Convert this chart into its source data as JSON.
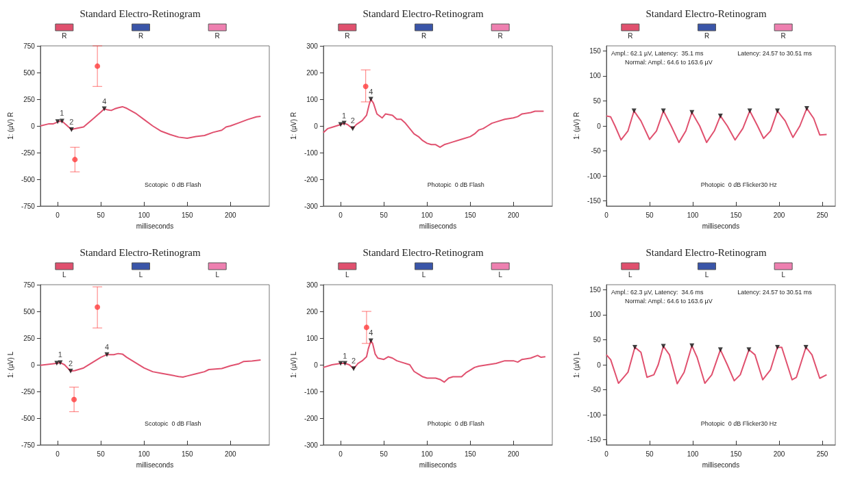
{
  "chart_data": [
    {
      "type": "line",
      "title": "Standard Electro-Retinogram",
      "xlabel": "milliseconds",
      "ylabel": "1: (µV) R",
      "xlim": [
        -20,
        245
      ],
      "xticks": [
        0,
        50,
        100,
        150,
        200
      ],
      "ylim": [
        -750,
        750
      ],
      "yticks": [
        -750,
        -500,
        -250,
        0,
        250,
        500,
        750
      ],
      "legend": "top",
      "series": [
        {
          "name": "R",
          "color": "#e0506e",
          "x": [
            -20,
            -10,
            -5,
            -2,
            0,
            5,
            10,
            16,
            20,
            30,
            40,
            50,
            54,
            58,
            62,
            66,
            70,
            75,
            80,
            90,
            100,
            110,
            120,
            130,
            140,
            150,
            160,
            170,
            180,
            190,
            195,
            200,
            210,
            220,
            230,
            235
          ],
          "values": [
            0,
            20,
            20,
            30,
            40,
            45,
            10,
            -35,
            -25,
            -10,
            60,
            130,
            160,
            150,
            145,
            160,
            170,
            180,
            165,
            120,
            60,
            0,
            -50,
            -80,
            -105,
            -115,
            -100,
            -90,
            -60,
            -40,
            -10,
            0,
            30,
            60,
            85,
            90
          ]
        },
        {
          "name": "R",
          "color": "#3a55a8"
        },
        {
          "name": "R",
          "color": "#ee80b0"
        },
        {
          "type": "scatter",
          "color": "#ff3b3b",
          "marker": "circle",
          "x": [
            46,
            20
          ],
          "values": [
            560,
            -315
          ],
          "errors": [
            [
              370,
              750
            ],
            [
              -430,
              -200
            ]
          ]
        },
        {
          "type": "scatter",
          "color": "#111111",
          "marker": "triangle",
          "x": [
            0,
            5,
            16,
            54
          ],
          "values": [
            40,
            45,
            -35,
            160
          ]
        }
      ],
      "annotations": [
        {
          "text": "1",
          "x": 5,
          "y": 45
        },
        {
          "text": "2",
          "x": 16,
          "y": -35
        },
        {
          "text": "4",
          "x": 54,
          "y": 160
        },
        "Scotopic  0 dB Flash"
      ]
    },
    {
      "type": "line",
      "title": "Standard Electro-Retinogram",
      "xlabel": "milliseconds",
      "ylabel": "1: (µV) R",
      "xlim": [
        -20,
        245
      ],
      "xticks": [
        0,
        50,
        100,
        150,
        200
      ],
      "ylim": [
        -300,
        300
      ],
      "yticks": [
        -300,
        -200,
        -100,
        0,
        100,
        200,
        300
      ],
      "legend": "top",
      "series": [
        {
          "name": "R",
          "color": "#e0506e",
          "x": [
            -20,
            -15,
            -10,
            -5,
            0,
            4,
            8,
            14,
            18,
            25,
            30,
            33,
            35,
            38,
            42,
            48,
            52,
            60,
            65,
            70,
            75,
            80,
            85,
            90,
            95,
            100,
            105,
            110,
            115,
            120,
            125,
            130,
            140,
            150,
            155,
            160,
            165,
            170,
            175,
            180,
            190,
            200,
            205,
            210,
            220,
            225,
            235
          ],
          "values": [
            -25,
            -10,
            -5,
            0,
            5,
            10,
            5,
            -10,
            5,
            20,
            40,
            80,
            100,
            85,
            45,
            30,
            45,
            40,
            25,
            25,
            10,
            -10,
            -30,
            -40,
            -55,
            -65,
            -70,
            -70,
            -80,
            -70,
            -65,
            -60,
            -50,
            -40,
            -30,
            -15,
            -10,
            0,
            10,
            15,
            25,
            30,
            35,
            45,
            50,
            55,
            55
          ]
        },
        {
          "name": "R",
          "color": "#3a55a8"
        },
        {
          "name": "R",
          "color": "#ee80b0"
        },
        {
          "type": "scatter",
          "color": "#ff3b3b",
          "marker": "circle",
          "x": [
            29
          ],
          "values": [
            148
          ],
          "errors": [
            [
              90,
              210
            ]
          ]
        },
        {
          "type": "scatter",
          "color": "#111111",
          "marker": "triangle",
          "x": [
            0,
            4,
            14,
            35
          ],
          "values": [
            5,
            10,
            -10,
            100
          ]
        }
      ],
      "annotations": [
        {
          "text": "1",
          "x": 4,
          "y": 10
        },
        {
          "text": "2",
          "x": 14,
          "y": -10
        },
        {
          "text": "4",
          "x": 35,
          "y": 100
        },
        "Photopic  0 dB Flash"
      ]
    },
    {
      "type": "line",
      "title": "Standard Electro-Retinogram",
      "xlabel": "milliseconds",
      "ylabel": "1: (µV) R",
      "xlim": [
        0,
        265
      ],
      "xticks": [
        0,
        50,
        100,
        150,
        200,
        250
      ],
      "ylim": [
        -160,
        160
      ],
      "yticks": [
        -150,
        -100,
        -50,
        0,
        50,
        100,
        150
      ],
      "legend": "top",
      "series": [
        {
          "name": "R",
          "color": "#e0506e",
          "x": [
            0,
            5,
            10,
            17,
            25,
            32,
            40,
            50,
            58,
            66,
            75,
            84,
            92,
            99,
            108,
            116,
            125,
            132,
            140,
            149,
            158,
            166,
            175,
            182,
            190,
            198,
            207,
            216,
            224,
            232,
            240,
            247,
            255
          ],
          "values": [
            20,
            18,
            0,
            -28,
            -10,
            30,
            10,
            -27,
            -10,
            30,
            0,
            -33,
            -10,
            27,
            0,
            -33,
            -10,
            20,
            0,
            -28,
            -5,
            30,
            0,
            -25,
            -10,
            30,
            10,
            -23,
            0,
            35,
            15,
            -18,
            -17
          ]
        },
        {
          "name": "R",
          "color": "#3a55a8"
        },
        {
          "name": "R",
          "color": "#ee80b0"
        },
        {
          "type": "scatter",
          "color": "#111111",
          "marker": "triangle",
          "x": [
            32,
            66,
            99,
            132,
            166,
            198,
            232
          ],
          "values": [
            30,
            30,
            27,
            20,
            30,
            30,
            35
          ]
        }
      ],
      "annotations": [
        "Ampl.: 62.1 µV, Latency:  35.1 ms",
        "Normal: Ampl.: 64.6 to 163.6 µV",
        "Latency: 24.57 to 30.51 ms",
        "Photopic  0 dB Flicker30 Hz"
      ]
    },
    {
      "type": "line",
      "title": "Standard Electro-Retinogram",
      "xlabel": "milliseconds",
      "ylabel": "1: (µV) L",
      "xlim": [
        -20,
        245
      ],
      "xticks": [
        0,
        50,
        100,
        150,
        200
      ],
      "ylim": [
        -750,
        750
      ],
      "yticks": [
        -750,
        -500,
        -250,
        0,
        250,
        500,
        750
      ],
      "legend": "top",
      "series": [
        {
          "name": "L",
          "color": "#e0506e",
          "x": [
            -20,
            -10,
            0,
            3,
            8,
            15,
            20,
            30,
            40,
            50,
            57,
            65,
            70,
            75,
            80,
            90,
            100,
            110,
            120,
            130,
            140,
            145,
            150,
            160,
            170,
            175,
            190,
            200,
            210,
            215,
            225,
            235
          ],
          "values": [
            -5,
            5,
            15,
            20,
            0,
            -60,
            -55,
            -30,
            20,
            70,
            95,
            95,
            105,
            100,
            70,
            20,
            -30,
            -65,
            -80,
            -95,
            -110,
            -115,
            -105,
            -85,
            -65,
            -45,
            -35,
            -10,
            10,
            30,
            35,
            45
          ]
        },
        {
          "name": "L",
          "color": "#3a55a8"
        },
        {
          "name": "L",
          "color": "#ee80b0"
        },
        {
          "type": "scatter",
          "color": "#ff3b3b",
          "marker": "circle",
          "x": [
            46,
            19
          ],
          "values": [
            540,
            -325
          ],
          "errors": [
            [
              345,
              730
            ],
            [
              -440,
              -210
            ]
          ]
        },
        {
          "type": "scatter",
          "color": "#111111",
          "marker": "triangle",
          "x": [
            -1,
            3,
            15,
            57
          ],
          "values": [
            15,
            20,
            -60,
            95
          ]
        }
      ],
      "annotations": [
        {
          "text": "1",
          "x": 3,
          "y": 20
        },
        {
          "text": "2",
          "x": 15,
          "y": -60
        },
        {
          "text": "4",
          "x": 57,
          "y": 95
        },
        "Scotopic  0 dB Flash"
      ]
    },
    {
      "type": "line",
      "title": "Standard Electro-Retinogram",
      "xlabel": "milliseconds",
      "ylabel": "1: (µV) L",
      "xlim": [
        -20,
        245
      ],
      "xticks": [
        0,
        50,
        100,
        150,
        200
      ],
      "ylim": [
        -300,
        300
      ],
      "yticks": [
        -300,
        -200,
        -100,
        0,
        100,
        200,
        300
      ],
      "legend": "top",
      "series": [
        {
          "name": "L",
          "color": "#e0506e",
          "x": [
            -20,
            -10,
            0,
            5,
            10,
            15,
            20,
            25,
            30,
            32,
            35,
            37,
            40,
            43,
            50,
            55,
            60,
            65,
            70,
            80,
            85,
            90,
            95,
            100,
            110,
            115,
            120,
            125,
            130,
            140,
            145,
            150,
            155,
            160,
            170,
            180,
            190,
            200,
            205,
            210,
            220,
            228,
            232,
            237
          ],
          "values": [
            -10,
            0,
            5,
            5,
            0,
            -15,
            5,
            15,
            30,
            60,
            90,
            80,
            40,
            25,
            20,
            30,
            25,
            15,
            10,
            0,
            -25,
            -35,
            -45,
            -50,
            -50,
            -55,
            -65,
            -50,
            -45,
            -45,
            -30,
            -20,
            -10,
            -5,
            0,
            5,
            15,
            15,
            10,
            20,
            25,
            35,
            28,
            30
          ]
        },
        {
          "name": "L",
          "color": "#3a55a8"
        },
        {
          "name": "L",
          "color": "#ee80b0"
        },
        {
          "type": "scatter",
          "color": "#ff3b3b",
          "marker": "circle",
          "x": [
            30
          ],
          "values": [
            140
          ],
          "errors": [
            [
              80,
              200
            ]
          ]
        },
        {
          "type": "scatter",
          "color": "#111111",
          "marker": "triangle",
          "x": [
            0,
            5,
            15,
            35
          ],
          "values": [
            5,
            5,
            -15,
            90
          ]
        }
      ],
      "annotations": [
        {
          "text": "1",
          "x": 5,
          "y": 5
        },
        {
          "text": "2",
          "x": 15,
          "y": -15
        },
        {
          "text": "4",
          "x": 35,
          "y": 90
        },
        "Photopic  0 dB Flash"
      ]
    },
    {
      "type": "line",
      "title": "Standard Electro-Retinogram",
      "xlabel": "milliseconds",
      "ylabel": "1: (µV) L",
      "xlim": [
        0,
        265
      ],
      "xticks": [
        0,
        50,
        100,
        150,
        200,
        250
      ],
      "ylim": [
        -160,
        160
      ],
      "yticks": [
        -150,
        -100,
        -50,
        0,
        50,
        100,
        150
      ],
      "legend": "top",
      "series": [
        {
          "name": "L",
          "color": "#e0506e",
          "x": [
            0,
            5,
            14,
            20,
            25,
            33,
            40,
            47,
            55,
            60,
            66,
            73,
            82,
            90,
            99,
            105,
            114,
            122,
            132,
            140,
            148,
            155,
            165,
            172,
            181,
            190,
            198,
            203,
            215,
            220,
            231,
            238,
            247,
            255
          ],
          "values": [
            20,
            10,
            -37,
            -25,
            -15,
            35,
            25,
            -25,
            -20,
            0,
            37,
            20,
            -38,
            -15,
            38,
            15,
            -37,
            -20,
            30,
            0,
            -32,
            -20,
            30,
            20,
            -30,
            -10,
            35,
            35,
            -30,
            -25,
            35,
            20,
            -27,
            -20
          ]
        },
        {
          "name": "L",
          "color": "#3a55a8"
        },
        {
          "name": "L",
          "color": "#ee80b0"
        },
        {
          "type": "scatter",
          "color": "#111111",
          "marker": "triangle",
          "x": [
            33,
            66,
            99,
            132,
            165,
            198,
            231
          ],
          "values": [
            35,
            37,
            38,
            30,
            30,
            35,
            35
          ]
        }
      ],
      "annotations": [
        "Ampl.: 62.3 µV, Latency:  34.6 ms",
        "Normal: Ampl.: 64.6 to 163.6 µV",
        "Latency: 24.57 to 30.51 ms",
        "Photopic  0 dB Flicker30 Hz"
      ]
    }
  ]
}
